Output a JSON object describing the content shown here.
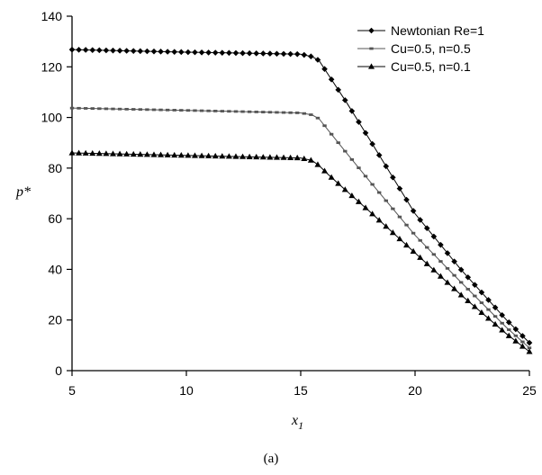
{
  "chart_data": {
    "type": "line",
    "xlabel": "x",
    "xlabel_sub": "1",
    "ylabel": "p*",
    "xlim": [
      5,
      25
    ],
    "ylim": [
      0,
      140
    ],
    "xticks": [
      5,
      10,
      15,
      20,
      25
    ],
    "yticks": [
      0,
      20,
      40,
      60,
      80,
      100,
      120,
      140
    ],
    "grid": false,
    "legend_position": "top-right",
    "series": [
      {
        "name": "Newtonian Re=1",
        "marker": "diamond",
        "points": [
          [
            5,
            126.8
          ],
          [
            10,
            125.8
          ],
          [
            15,
            125.0
          ],
          [
            15.5,
            124.0
          ],
          [
            15.8,
            122.5
          ],
          [
            16.2,
            117.0
          ],
          [
            17,
            106.0
          ],
          [
            18,
            91.5
          ],
          [
            20,
            62.0
          ],
          [
            22,
            40.0
          ],
          [
            24,
            20.0
          ],
          [
            25,
            11.0
          ]
        ]
      },
      {
        "name": "Cu=0.5, n=0.5",
        "marker": "dash",
        "points": [
          [
            5,
            103.7
          ],
          [
            10,
            102.8
          ],
          [
            15,
            101.8
          ],
          [
            15.5,
            101.0
          ],
          [
            15.8,
            99.5
          ],
          [
            16.2,
            95.0
          ],
          [
            17,
            86.0
          ],
          [
            18,
            75.0
          ],
          [
            20,
            53.5
          ],
          [
            22,
            35.0
          ],
          [
            24,
            17.0
          ],
          [
            25,
            9.0
          ]
        ]
      },
      {
        "name": "Cu=0.5, n=0.1",
        "marker": "triangle",
        "points": [
          [
            5,
            86.0
          ],
          [
            10,
            85.0
          ],
          [
            15,
            84.0
          ],
          [
            15.5,
            83.0
          ],
          [
            15.8,
            81.0
          ],
          [
            16.2,
            77.5
          ],
          [
            17,
            71.0
          ],
          [
            18,
            63.0
          ],
          [
            20,
            46.5
          ],
          [
            22,
            30.0
          ],
          [
            24,
            14.5
          ],
          [
            25,
            7.5
          ]
        ]
      }
    ]
  },
  "caption": "(a)"
}
